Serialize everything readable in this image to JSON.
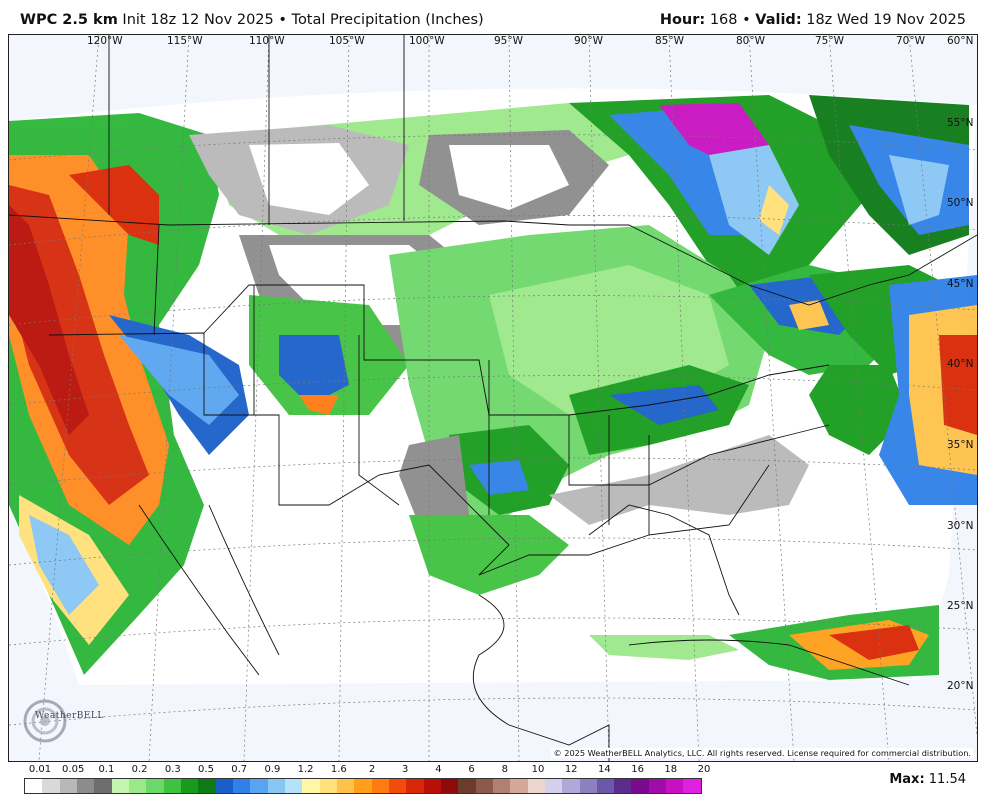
{
  "header": {
    "model": "WPC 2.5 km",
    "init": "Init 18z 12 Nov 2025",
    "separator": "•",
    "field": "Total Precipitation (Inches)",
    "hour_label": "Hour:",
    "hour_value": "168",
    "valid_label": "Valid:",
    "valid_value": "18z Wed 19 Nov 2025"
  },
  "map": {
    "longitude_labels": [
      "120°W",
      "115°W",
      "110°W",
      "105°W",
      "100°W",
      "95°W",
      "90°W",
      "85°W",
      "80°W",
      "75°W",
      "70°W"
    ],
    "latitude_labels": [
      "60°N",
      "55°N",
      "50°N",
      "45°N",
      "40°N",
      "35°N",
      "30°N",
      "25°N",
      "20°N"
    ],
    "copyright": "© 2025 WeatherBELL Analytics, LLC. All rights reserved. License required for commercial distribution.",
    "logo_text": "WeatherBELL"
  },
  "legend": {
    "tick_labels": [
      "0.01",
      "0.05",
      "0.1",
      "0.2",
      "0.3",
      "0.5",
      "0.7",
      "0.9",
      "1.2",
      "1.6",
      "2",
      "3",
      "4",
      "6",
      "8",
      "10",
      "12",
      "14",
      "16",
      "18",
      "20"
    ],
    "colors": [
      "#ffffff",
      "#d9d9d9",
      "#b8b8b8",
      "#8c8c8c",
      "#6e6e6e",
      "#c6f5b0",
      "#9be88a",
      "#6dd86a",
      "#3fc23f",
      "#189b1c",
      "#0d7a16",
      "#1a5fc8",
      "#2f80e8",
      "#58a4f0",
      "#88c6f5",
      "#b6e1fa",
      "#fff7a8",
      "#ffe07a",
      "#ffc24a",
      "#ff9f1a",
      "#ff7a10",
      "#f24c0a",
      "#d92805",
      "#b80f06",
      "#8f0a0a",
      "#6b3c2c",
      "#8c5a48",
      "#b08070",
      "#d4a898",
      "#ecd6cc",
      "#d4d0ec",
      "#b0a8d8",
      "#8c80c0",
      "#6c58a8",
      "#5a2c8c",
      "#7a0a8c",
      "#a00ca8",
      "#c810c0",
      "#e020e0"
    ],
    "max_label": "Max:",
    "max_value": "11.54"
  }
}
